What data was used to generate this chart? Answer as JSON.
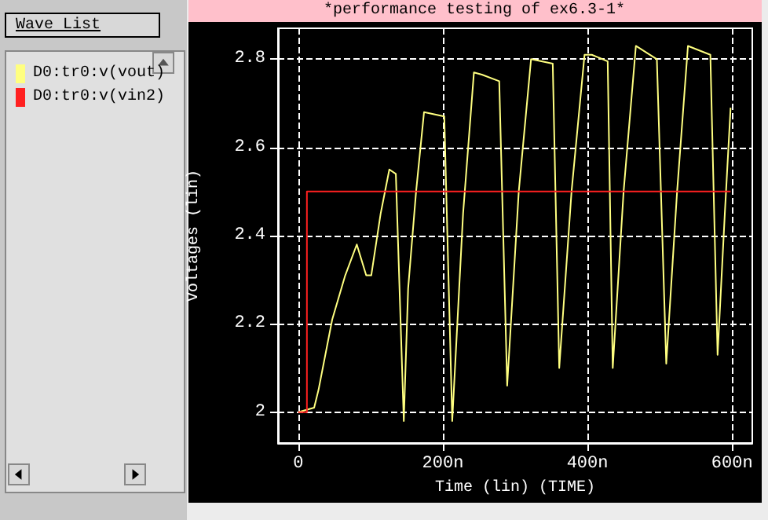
{
  "chart_data": {
    "type": "line",
    "title": "*performance testing of ex6.3-1*",
    "xlabel": "Time (lin) (TIME)",
    "ylabel": "Voltages (lin)",
    "annotations": [
      "Wave List"
    ],
    "series": [
      {
        "name": "D0:tr0:v(vout)",
        "color": "#ffff80",
        "x": [
          0,
          22,
          28,
          47,
          65,
          81,
          94,
          101,
          114,
          126,
          135,
          146,
          152,
          163,
          174,
          202,
          213,
          228,
          243,
          254,
          278,
          289,
          305,
          322,
          352,
          361,
          378,
          396,
          406,
          428,
          435,
          450,
          467,
          496,
          509,
          524,
          539,
          570,
          580,
          590,
          598
        ],
        "values": [
          2.0,
          2.01,
          2.05,
          2.21,
          2.31,
          2.38,
          2.31,
          2.31,
          2.45,
          2.55,
          2.54,
          1.98,
          2.28,
          2.5,
          2.68,
          2.67,
          1.98,
          2.45,
          2.77,
          2.765,
          2.75,
          2.06,
          2.5,
          2.8,
          2.79,
          2.1,
          2.5,
          2.81,
          2.81,
          2.795,
          2.1,
          2.5,
          2.83,
          2.8,
          2.11,
          2.5,
          2.83,
          2.81,
          2.13,
          2.45,
          2.69
        ]
      },
      {
        "name": "D0:tr0:v(vin2)",
        "color": "#ff2020",
        "x": [
          0,
          12,
          12,
          598
        ],
        "values": [
          2.0,
          2.0,
          2.5,
          2.5
        ]
      }
    ],
    "xlim": [
      -28,
      628
    ],
    "xticks": [
      {
        "value": 0,
        "label": "0"
      },
      {
        "value": 200,
        "label": "200n"
      },
      {
        "value": 400,
        "label": "400n"
      },
      {
        "value": 600,
        "label": "600n"
      }
    ],
    "ylim": [
      1.93,
      2.87
    ],
    "yticks": [
      2,
      2.2,
      2.4,
      2.6,
      2.8
    ],
    "grid": true,
    "legend": "left",
    "marker": "none",
    "line_style": "solid"
  }
}
